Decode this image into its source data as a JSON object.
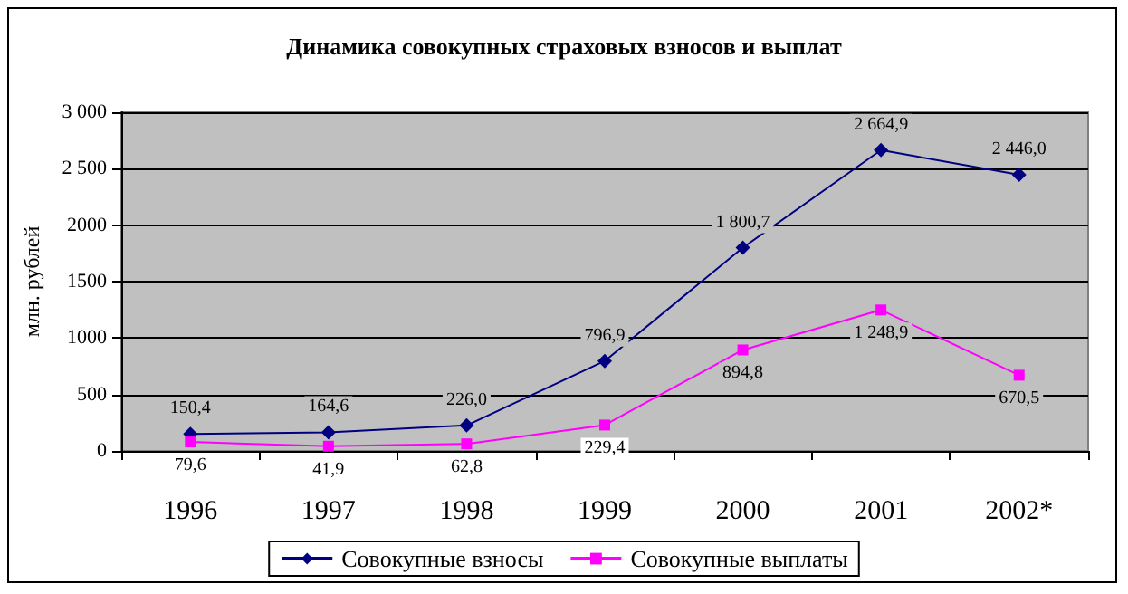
{
  "chart_data": {
    "type": "line",
    "title": "Динамика совокупных страховых взносов и выплат",
    "ylabel": "млн. рублей",
    "categories": [
      "1996",
      "1997",
      "1998",
      "1999",
      "2000",
      "2001",
      "2002*"
    ],
    "series": [
      {
        "name": "Совокупные взносы",
        "color": "#000080",
        "marker": "diamond",
        "values": [
          150.4,
          164.6,
          226.0,
          796.9,
          1800.7,
          2664.9,
          2446.0
        ],
        "value_labels": [
          "150,4",
          "164,6",
          "226,0",
          "796,9",
          "1 800,7",
          "2 664,9",
          "2 446,0"
        ]
      },
      {
        "name": "Совокупные выплаты",
        "color": "#ff00ff",
        "marker": "square",
        "values": [
          79.6,
          41.9,
          62.8,
          229.4,
          894.8,
          1248.9,
          670.5
        ],
        "value_labels": [
          "79,6",
          "41,9",
          "62,8",
          "229,4",
          "894,8",
          "1 248,9",
          "670,5"
        ]
      }
    ],
    "ylim": [
      0,
      3000
    ],
    "yticks": [
      0,
      500,
      1000,
      1500,
      2000,
      {
        "value": 2500,
        "label": "2 500"
      },
      {
        "value": 3000,
        "label": "3 000"
      }
    ],
    "grid": "y",
    "legend": "bottom"
  }
}
